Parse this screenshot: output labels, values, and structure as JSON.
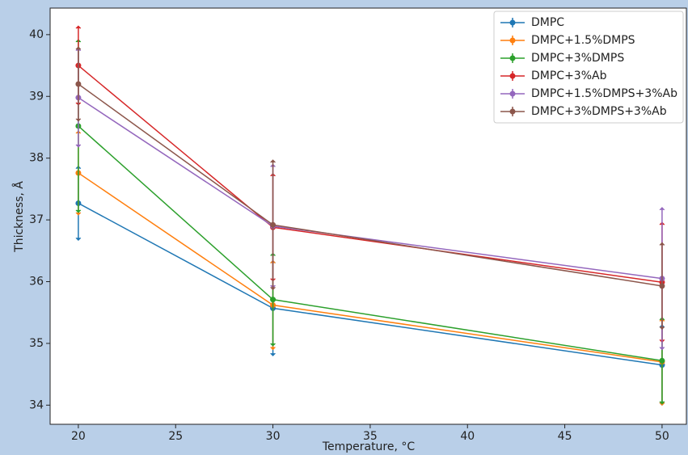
{
  "chart_data": {
    "type": "line",
    "x_label": "Temperature, °C",
    "y_label": "Thickness, Å",
    "x": [
      20,
      30,
      50
    ],
    "series": [
      {
        "name": "DMPC",
        "color": "#1f77b4",
        "values": [
          37.27,
          35.57,
          34.65
        ],
        "errors": [
          0.6,
          0.77,
          0.65
        ]
      },
      {
        "name": "DMPC+1.5%DMPS",
        "color": "#ff7f0e",
        "values": [
          37.76,
          35.62,
          34.7
        ],
        "errors": [
          0.68,
          0.72,
          0.7
        ]
      },
      {
        "name": "DMPC+3%DMPS",
        "color": "#2ca02c",
        "values": [
          38.52,
          35.71,
          34.72
        ],
        "errors": [
          1.4,
          0.75,
          0.7
        ]
      },
      {
        "name": "DMPC+3%Ab",
        "color": "#d62728",
        "values": [
          39.5,
          36.88,
          35.99
        ],
        "errors": [
          0.64,
          0.87,
          0.97
        ]
      },
      {
        "name": "DMPC+1.5%DMPS+3%Ab",
        "color": "#9467bd",
        "values": [
          38.98,
          36.9,
          36.05
        ],
        "errors": [
          0.8,
          1.0,
          1.15
        ]
      },
      {
        "name": "DMPC+3%DMPS+3%Ab",
        "color": "#8c564b",
        "values": [
          39.2,
          36.92,
          35.93
        ],
        "errors": [
          0.6,
          1.05,
          0.7
        ]
      }
    ],
    "xlim": [
      18.55,
      51.25
    ],
    "xticks": [
      20,
      25,
      30,
      35,
      40,
      45,
      50
    ],
    "ylim": [
      33.69,
      40.43
    ],
    "yticks": [
      34,
      35,
      36,
      37,
      38,
      39,
      40
    ],
    "legend": "upper right"
  }
}
